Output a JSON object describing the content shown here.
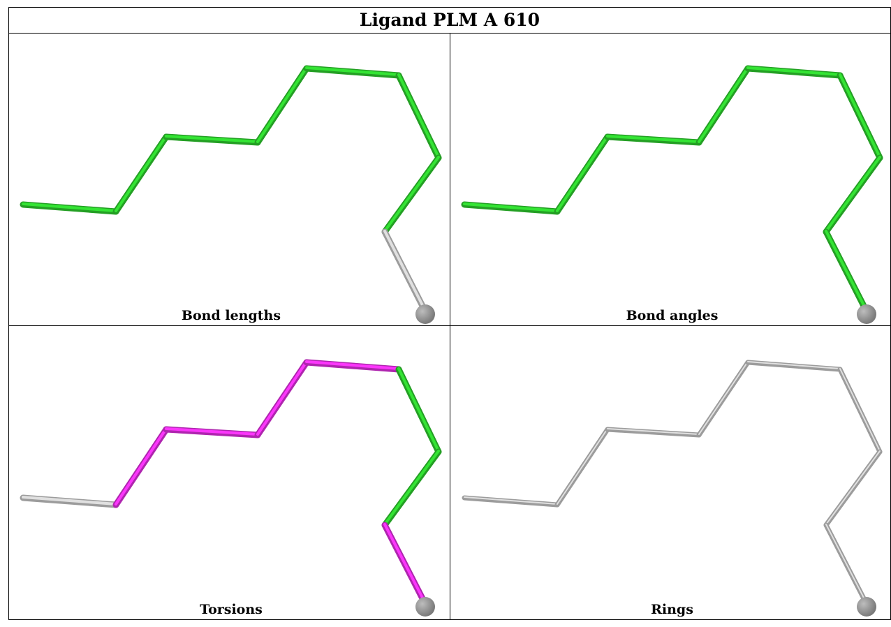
{
  "title": "Ligand PLM A 610",
  "panels": [
    {
      "id": "bond-lengths",
      "caption": "Bond lengths",
      "chain_colors": [
        "#2ecc2e",
        "#2ecc2e",
        "#2ecc2e",
        "#2ecc2e",
        "#2ecc2e",
        "#2ecc2e",
        "#2ecc2e",
        "#c8c8c8",
        "#2ecc2e"
      ],
      "end_atom_color": "#7a7a7a"
    },
    {
      "id": "bond-angles",
      "caption": "Bond angles",
      "chain_colors": [
        "#2ecc2e",
        "#2ecc2e",
        "#2ecc2e",
        "#2ecc2e",
        "#2ecc2e",
        "#2ecc2e",
        "#2ecc2e",
        "#2ecc2e",
        "#2ecc2e"
      ],
      "end_atom_color": "#7a7a7a"
    },
    {
      "id": "torsions",
      "caption": "Torsions",
      "chain_colors": [
        "#c8c8c8",
        "#e030e0",
        "#e030e0",
        "#e030e0",
        "#e030e0",
        "#2ecc2e",
        "#2ecc2e",
        "#e030e0",
        "#c8c8c8"
      ],
      "end_atom_color": "#7a7a7a"
    },
    {
      "id": "rings",
      "caption": "Rings",
      "chain_colors": [
        "#c8c8c8",
        "#c8c8c8",
        "#c8c8c8",
        "#c8c8c8",
        "#c8c8c8",
        "#c8c8c8",
        "#c8c8c8",
        "#c8c8c8",
        "#c8c8c8"
      ],
      "end_atom_color": "#7a7a7a"
    }
  ]
}
